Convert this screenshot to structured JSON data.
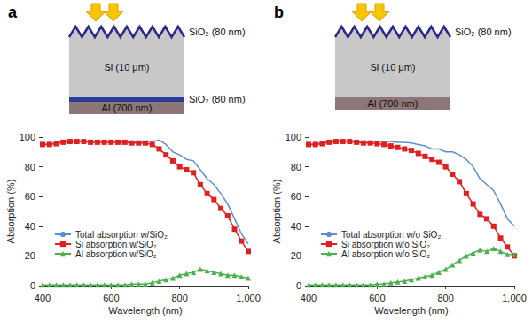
{
  "chart_data": [
    {
      "type": "line",
      "title": "a",
      "annotations": [
        "SiO₂ (80 nm)",
        "Si (10 μm)",
        "SiO₂ (80 nm)",
        "Al (700 nm)"
      ],
      "x_label": "Wavelength (nm)",
      "y_label": "Absorption (%)",
      "x": [
        400,
        420,
        440,
        460,
        480,
        500,
        520,
        540,
        560,
        580,
        600,
        620,
        640,
        660,
        680,
        700,
        720,
        740,
        760,
        780,
        800,
        820,
        840,
        860,
        880,
        900,
        920,
        940,
        960,
        980,
        1000
      ],
      "series": [
        {
          "name": "Total absorption w/SiO₂",
          "color": "#5b8fd0",
          "marker": "none",
          "values": [
            95,
            95.5,
            96,
            97,
            97.5,
            97.5,
            97.5,
            97,
            97,
            97,
            97,
            97,
            97,
            96.5,
            97,
            97,
            97,
            98,
            95,
            90,
            88,
            85,
            84,
            78,
            72,
            68,
            62,
            55,
            45,
            35,
            28
          ]
        },
        {
          "name": "Si absorption w/SiO₂",
          "color": "#e02020",
          "marker": "square",
          "values": [
            95,
            95,
            95.5,
            96.5,
            97,
            97,
            97,
            96.5,
            96.5,
            96.5,
            96.5,
            96.5,
            96.5,
            96,
            96,
            96,
            95,
            92,
            88,
            84,
            80,
            78,
            76,
            68,
            62,
            58,
            52,
            47,
            38,
            30,
            23
          ]
        },
        {
          "name": "Al absorption w/SiO₂",
          "color": "#4caf50",
          "marker": "triangle",
          "values": [
            0.5,
            0.5,
            0.5,
            0.5,
            0.5,
            0.5,
            0.5,
            0.5,
            0.5,
            0.5,
            0.5,
            0.5,
            0.5,
            1,
            1,
            1,
            2,
            3,
            4,
            5,
            7,
            8,
            9,
            11,
            10,
            9,
            8,
            7,
            7,
            6,
            5
          ]
        }
      ],
      "xlim": [
        400,
        1000
      ],
      "xticks": [
        400,
        600,
        800,
        {
          "value": 1000,
          "label": "1,000"
        }
      ],
      "ylim": [
        0,
        100
      ],
      "yticks": [
        0,
        20,
        40,
        60,
        80,
        100
      ],
      "grid": false,
      "legend": "lower left"
    },
    {
      "type": "line",
      "title": "b",
      "annotations": [
        "SiO₂ (80 nm)",
        "Si (10 μm)",
        "Al (700 nm)"
      ],
      "x_label": "Wavelength (nm)",
      "y_label": "Absorption (%)",
      "x": [
        400,
        420,
        440,
        460,
        480,
        500,
        520,
        540,
        560,
        580,
        600,
        620,
        640,
        660,
        680,
        700,
        720,
        740,
        760,
        780,
        800,
        820,
        840,
        860,
        880,
        900,
        920,
        940,
        960,
        980,
        1000
      ],
      "series": [
        {
          "name": "Total absorption w/o SiO₂",
          "color": "#5b8fd0",
          "marker": "none",
          "values": [
            95,
            95.5,
            96,
            97,
            97.5,
            97.5,
            97.5,
            97,
            97,
            97,
            97,
            97,
            97,
            96.5,
            96.5,
            96,
            95,
            94,
            92,
            92,
            90,
            90,
            88,
            85,
            80,
            72,
            68,
            64,
            55,
            45,
            40
          ]
        },
        {
          "name": "Si absorption w/o SiO₂",
          "color": "#e02020",
          "marker": "square",
          "values": [
            95,
            95,
            95.5,
            96.5,
            97,
            97,
            97,
            96.5,
            96,
            96,
            95.5,
            95,
            94,
            93,
            92,
            91,
            89,
            87,
            85,
            83,
            80,
            75,
            70,
            62,
            55,
            48,
            45,
            40,
            32,
            26,
            20
          ]
        },
        {
          "name": "Al absorption w/o SiO₂",
          "color": "#4caf50",
          "marker": "triangle",
          "values": [
            0.5,
            0.5,
            0.5,
            0.5,
            0.5,
            0.5,
            0.5,
            0.5,
            0.5,
            0.5,
            1,
            1,
            2,
            2.5,
            3,
            4,
            5,
            6,
            7,
            9,
            11,
            14,
            17,
            20,
            22,
            24,
            23,
            25,
            23,
            21,
            21
          ]
        }
      ],
      "xlim": [
        400,
        1000
      ],
      "xticks": [
        400,
        600,
        800,
        {
          "value": 1000,
          "label": "1,000"
        }
      ],
      "ylim": [
        0,
        100
      ],
      "yticks": [
        0,
        20,
        40,
        60,
        80,
        100
      ],
      "grid": false,
      "legend": "lower left"
    }
  ]
}
